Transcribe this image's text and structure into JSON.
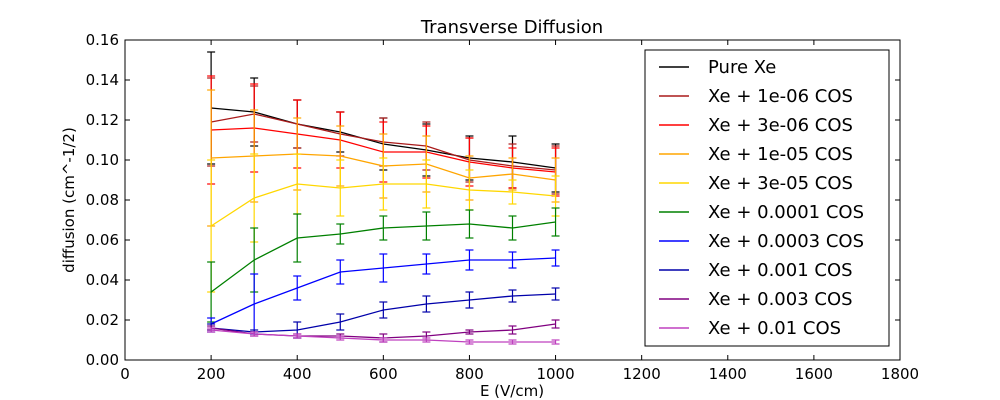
{
  "chart_data": {
    "type": "line",
    "title": "Transverse Diffusion",
    "xlabel": "E (V/cm)",
    "ylabel": "diffusion (cm^-1/2)",
    "xlim": [
      0,
      1800
    ],
    "ylim": [
      0,
      0.16
    ],
    "xticks": [
      0,
      200,
      400,
      600,
      800,
      1000,
      1200,
      1400,
      1600,
      1800
    ],
    "yticks": [
      0.0,
      0.02,
      0.04,
      0.06,
      0.08,
      0.1,
      0.12,
      0.14,
      0.16
    ],
    "xtick_labels": [
      "0",
      "200",
      "400",
      "600",
      "800",
      "1000",
      "1200",
      "1400",
      "1600",
      "1800"
    ],
    "ytick_labels": [
      "0.00",
      "0.02",
      "0.04",
      "0.06",
      "0.08",
      "0.10",
      "0.12",
      "0.14",
      "0.16"
    ],
    "legend_position": "top-right",
    "grid": false,
    "x": [
      200,
      300,
      400,
      500,
      600,
      700,
      800,
      900,
      1000
    ],
    "series": [
      {
        "name": "Pure Xe",
        "color": "#000000",
        "values": [
          0.126,
          0.124,
          0.118,
          0.114,
          0.108,
          0.105,
          0.101,
          0.099,
          0.096
        ],
        "errors": [
          0.028,
          0.017,
          0.012,
          0.01,
          0.013,
          0.013,
          0.011,
          0.013,
          0.012
        ]
      },
      {
        "name": "Xe + 1e-06 COS",
        "color": "#aa1a1a",
        "values": [
          0.119,
          0.123,
          0.118,
          0.113,
          0.109,
          0.107,
          0.1,
          0.097,
          0.095
        ],
        "errors": [
          0.022,
          0.014,
          0.012,
          0.011,
          0.012,
          0.012,
          0.011,
          0.011,
          0.012
        ]
      },
      {
        "name": "Xe + 3e-06 COS",
        "color": "#ff0000",
        "values": [
          0.115,
          0.116,
          0.113,
          0.11,
          0.104,
          0.104,
          0.099,
          0.096,
          0.094
        ],
        "errors": [
          0.027,
          0.022,
          0.017,
          0.014,
          0.015,
          0.013,
          0.012,
          0.01,
          0.012
        ]
      },
      {
        "name": "Xe + 1e-05 COS",
        "color": "#ffa500",
        "values": [
          0.101,
          0.102,
          0.103,
          0.102,
          0.097,
          0.098,
          0.091,
          0.093,
          0.09
        ],
        "errors": [
          0.034,
          0.023,
          0.018,
          0.015,
          0.016,
          0.014,
          0.011,
          0.008,
          0.011
        ]
      },
      {
        "name": "Xe + 3e-05 COS",
        "color": "#ffd700",
        "values": [
          0.067,
          0.081,
          0.088,
          0.086,
          0.088,
          0.088,
          0.085,
          0.084,
          0.082
        ],
        "errors": [
          0.033,
          0.022,
          0.015,
          0.014,
          0.013,
          0.012,
          0.01,
          0.006,
          0.01
        ]
      },
      {
        "name": "Xe + 0.0001 COS",
        "color": "#008000",
        "values": [
          0.034,
          0.05,
          0.061,
          0.063,
          0.066,
          0.067,
          0.068,
          0.066,
          0.069
        ],
        "errors": [
          0.015,
          0.016,
          0.012,
          0.005,
          0.006,
          0.007,
          0.007,
          0.006,
          0.007
        ]
      },
      {
        "name": "Xe + 0.0003 COS",
        "color": "#0000ff",
        "values": [
          0.018,
          0.028,
          0.036,
          0.044,
          0.046,
          0.048,
          0.05,
          0.05,
          0.051
        ],
        "errors": [
          0.003,
          0.015,
          0.006,
          0.006,
          0.007,
          0.005,
          0.005,
          0.004,
          0.004
        ]
      },
      {
        "name": "Xe + 0.001 COS",
        "color": "#0000aa",
        "values": [
          0.016,
          0.014,
          0.015,
          0.019,
          0.025,
          0.028,
          0.03,
          0.032,
          0.033
        ],
        "errors": [
          0.002,
          0.001,
          0.004,
          0.004,
          0.004,
          0.004,
          0.004,
          0.003,
          0.003
        ]
      },
      {
        "name": "Xe + 0.003 COS",
        "color": "#800080",
        "values": [
          0.016,
          0.013,
          0.012,
          0.012,
          0.011,
          0.012,
          0.014,
          0.015,
          0.018
        ],
        "errors": [
          0.001,
          0.001,
          0.001,
          0.001,
          0.002,
          0.002,
          0.001,
          0.002,
          0.002
        ]
      },
      {
        "name": "Xe + 0.01 COS",
        "color": "#bf40bf",
        "values": [
          0.015,
          0.013,
          0.012,
          0.011,
          0.01,
          0.01,
          0.009,
          0.009,
          0.009
        ],
        "errors": [
          0.001,
          0.001,
          0.001,
          0.001,
          0.001,
          0.001,
          0.001,
          0.001,
          0.001
        ]
      }
    ]
  }
}
